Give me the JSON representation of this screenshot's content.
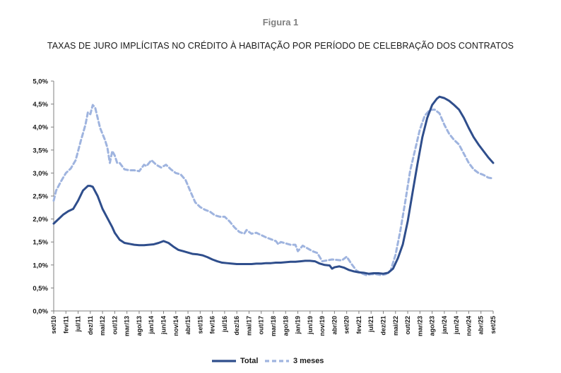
{
  "figure_label": "Figura 1",
  "colors": {
    "total": "#2f4e8c",
    "tres_meses": "#9fb4df",
    "axis": "#808080"
  },
  "chart_data": {
    "type": "line",
    "title": "TAXAS DE JURO IMPLÍCITAS NO CRÉDITO À HABITAÇÃO POR PERÍODO DE CELEBRAÇÃO DOS CONTRATOS",
    "xlabel": "",
    "ylabel": "",
    "ylim": [
      0,
      5
    ],
    "yticks": [
      "0,0%",
      "0,5%",
      "1,0%",
      "1,5%",
      "2,0%",
      "2,5%",
      "3,0%",
      "3,5%",
      "4,0%",
      "4,5%",
      "5,0%"
    ],
    "x_start": "set/10",
    "x_end": "set/25",
    "xticks": [
      {
        "label": "set/10",
        "m": 0
      },
      {
        "label": "fev/11",
        "m": 5
      },
      {
        "label": "jul/11",
        "m": 10
      },
      {
        "label": "dez/11",
        "m": 15
      },
      {
        "label": "mai/12",
        "m": 20
      },
      {
        "label": "out/12",
        "m": 25
      },
      {
        "label": "mar/13",
        "m": 30
      },
      {
        "label": "ago/13",
        "m": 35
      },
      {
        "label": "jan/14",
        "m": 40
      },
      {
        "label": "jun/14",
        "m": 45
      },
      {
        "label": "nov/14",
        "m": 50
      },
      {
        "label": "abr/15",
        "m": 55
      },
      {
        "label": "set/15",
        "m": 60
      },
      {
        "label": "fev/16",
        "m": 65
      },
      {
        "label": "jul/16",
        "m": 70
      },
      {
        "label": "dez/16",
        "m": 75
      },
      {
        "label": "mai/17",
        "m": 80
      },
      {
        "label": "out/17",
        "m": 85
      },
      {
        "label": "mar/18",
        "m": 90
      },
      {
        "label": "ago/18",
        "m": 95
      },
      {
        "label": "jan/19",
        "m": 100
      },
      {
        "label": "jun/19",
        "m": 105
      },
      {
        "label": "nov/19",
        "m": 110
      },
      {
        "label": "abr/20",
        "m": 115
      },
      {
        "label": "set/20",
        "m": 120
      },
      {
        "label": "fev/21",
        "m": 125
      },
      {
        "label": "jul/21",
        "m": 130
      },
      {
        "label": "dez/21",
        "m": 135
      },
      {
        "label": "mai/22",
        "m": 140
      },
      {
        "label": "out/22",
        "m": 145
      },
      {
        "label": "mar/23",
        "m": 150
      },
      {
        "label": "ago/23",
        "m": 155
      },
      {
        "label": "jan/24",
        "m": 160
      },
      {
        "label": "jun/24",
        "m": 165
      },
      {
        "label": "nov/24",
        "m": 170
      },
      {
        "label": "abr/25",
        "m": 175
      },
      {
        "label": "set/25",
        "m": 180
      }
    ],
    "grid": false,
    "legend_position": "bottom-center",
    "series": [
      {
        "name": "Total",
        "style": "solid",
        "points": [
          [
            "set/10",
            1.9
          ],
          [
            "nov/10",
            2.0
          ],
          [
            "jan/11",
            2.1
          ],
          [
            "mar/11",
            2.17
          ],
          [
            "mai/11",
            2.22
          ],
          [
            "jul/11",
            2.4
          ],
          [
            "set/11",
            2.62
          ],
          [
            "nov/11",
            2.72
          ],
          [
            "dez/11",
            2.72
          ],
          [
            "jan/12",
            2.7
          ],
          [
            "mar/12",
            2.5
          ],
          [
            "mai/12",
            2.22
          ],
          [
            "jul/12",
            2.02
          ],
          [
            "set/12",
            1.82
          ],
          [
            "out/12",
            1.7
          ],
          [
            "dez/12",
            1.55
          ],
          [
            "fev/13",
            1.48
          ],
          [
            "abr/13",
            1.46
          ],
          [
            "jun/13",
            1.44
          ],
          [
            "ago/13",
            1.43
          ],
          [
            "out/13",
            1.43
          ],
          [
            "dez/13",
            1.44
          ],
          [
            "fev/14",
            1.45
          ],
          [
            "abr/14",
            1.48
          ],
          [
            "jun/14",
            1.52
          ],
          [
            "ago/14",
            1.48
          ],
          [
            "out/14",
            1.4
          ],
          [
            "dez/14",
            1.33
          ],
          [
            "fev/15",
            1.3
          ],
          [
            "abr/15",
            1.27
          ],
          [
            "jun/15",
            1.24
          ],
          [
            "ago/15",
            1.23
          ],
          [
            "out/15",
            1.21
          ],
          [
            "dez/15",
            1.17
          ],
          [
            "fev/16",
            1.12
          ],
          [
            "abr/16",
            1.08
          ],
          [
            "jun/16",
            1.05
          ],
          [
            "ago/16",
            1.04
          ],
          [
            "out/16",
            1.03
          ],
          [
            "dez/16",
            1.02
          ],
          [
            "fev/17",
            1.02
          ],
          [
            "abr/17",
            1.02
          ],
          [
            "jun/17",
            1.02
          ],
          [
            "ago/17",
            1.03
          ],
          [
            "out/17",
            1.03
          ],
          [
            "dez/17",
            1.04
          ],
          [
            "fev/18",
            1.04
          ],
          [
            "abr/18",
            1.05
          ],
          [
            "jun/18",
            1.05
          ],
          [
            "ago/18",
            1.06
          ],
          [
            "out/18",
            1.07
          ],
          [
            "dez/18",
            1.07
          ],
          [
            "fev/19",
            1.08
          ],
          [
            "abr/19",
            1.09
          ],
          [
            "jun/19",
            1.09
          ],
          [
            "ago/19",
            1.08
          ],
          [
            "out/19",
            1.03
          ],
          [
            "dez/19",
            1.0
          ],
          [
            "fev/20",
            0.99
          ],
          [
            "mar/20",
            0.92
          ],
          [
            "abr/20",
            0.95
          ],
          [
            "jun/20",
            0.97
          ],
          [
            "ago/20",
            0.94
          ],
          [
            "out/20",
            0.89
          ],
          [
            "dez/20",
            0.86
          ],
          [
            "fev/21",
            0.84
          ],
          [
            "abr/21",
            0.83
          ],
          [
            "jun/21",
            0.81
          ],
          [
            "ago/21",
            0.82
          ],
          [
            "out/21",
            0.82
          ],
          [
            "dez/21",
            0.81
          ],
          [
            "fev/22",
            0.83
          ],
          [
            "abr/22",
            0.92
          ],
          [
            "jun/22",
            1.15
          ],
          [
            "ago/22",
            1.45
          ],
          [
            "out/22",
            1.95
          ],
          [
            "dez/22",
            2.58
          ],
          [
            "fev/23",
            3.2
          ],
          [
            "abr/23",
            3.78
          ],
          [
            "jun/23",
            4.2
          ],
          [
            "ago/23",
            4.48
          ],
          [
            "out/23",
            4.62
          ],
          [
            "nov/23",
            4.66
          ],
          [
            "jan/24",
            4.63
          ],
          [
            "mar/24",
            4.57
          ],
          [
            "mai/24",
            4.48
          ],
          [
            "jul/24",
            4.38
          ],
          [
            "set/24",
            4.2
          ],
          [
            "nov/24",
            3.98
          ],
          [
            "jan/25",
            3.78
          ],
          [
            "mar/25",
            3.62
          ],
          [
            "mai/25",
            3.48
          ],
          [
            "jul/25",
            3.34
          ],
          [
            "set/25",
            3.22
          ]
        ]
      },
      {
        "name": "3 meses",
        "style": "dashed",
        "points": [
          [
            "set/10",
            2.4
          ],
          [
            "out/10",
            2.62
          ],
          [
            "dez/10",
            2.82
          ],
          [
            "fev/11",
            3.0
          ],
          [
            "abr/11",
            3.1
          ],
          [
            "jun/11",
            3.28
          ],
          [
            "ago/11",
            3.68
          ],
          [
            "out/11",
            4.05
          ],
          [
            "nov/11",
            4.32
          ],
          [
            "dez/11",
            4.28
          ],
          [
            "jan/12",
            4.48
          ],
          [
            "fev/12",
            4.42
          ],
          [
            "mar/12",
            4.2
          ],
          [
            "abr/12",
            3.98
          ],
          [
            "jun/12",
            3.72
          ],
          [
            "jul/12",
            3.55
          ],
          [
            "ago/12",
            3.22
          ],
          [
            "set/12",
            3.48
          ],
          [
            "out/12",
            3.38
          ],
          [
            "nov/12",
            3.22
          ],
          [
            "dez/12",
            3.22
          ],
          [
            "fev/13",
            3.08
          ],
          [
            "abr/13",
            3.06
          ],
          [
            "jun/13",
            3.06
          ],
          [
            "ago/13",
            3.04
          ],
          [
            "out/13",
            3.18
          ],
          [
            "nov/13",
            3.15
          ],
          [
            "jan/14",
            3.28
          ],
          [
            "mar/14",
            3.18
          ],
          [
            "mai/14",
            3.12
          ],
          [
            "jul/14",
            3.18
          ],
          [
            "set/14",
            3.08
          ],
          [
            "nov/14",
            3.0
          ],
          [
            "jan/15",
            2.97
          ],
          [
            "mar/15",
            2.85
          ],
          [
            "mai/15",
            2.6
          ],
          [
            "jul/15",
            2.36
          ],
          [
            "set/15",
            2.26
          ],
          [
            "nov/15",
            2.2
          ],
          [
            "jan/16",
            2.16
          ],
          [
            "mar/16",
            2.08
          ],
          [
            "mai/16",
            2.05
          ],
          [
            "jul/16",
            2.05
          ],
          [
            "set/16",
            1.95
          ],
          [
            "nov/16",
            1.82
          ],
          [
            "jan/17",
            1.72
          ],
          [
            "mar/17",
            1.68
          ],
          [
            "abr/17",
            1.76
          ],
          [
            "jun/17",
            1.68
          ],
          [
            "ago/17",
            1.7
          ],
          [
            "out/17",
            1.65
          ],
          [
            "dez/17",
            1.6
          ],
          [
            "fev/18",
            1.56
          ],
          [
            "abr/18",
            1.52
          ],
          [
            "mai/18",
            1.45
          ],
          [
            "jun/18",
            1.5
          ],
          [
            "ago/18",
            1.47
          ],
          [
            "out/18",
            1.44
          ],
          [
            "dez/18",
            1.44
          ],
          [
            "jan/19",
            1.3
          ],
          [
            "mar/19",
            1.42
          ],
          [
            "mai/19",
            1.36
          ],
          [
            "jul/19",
            1.3
          ],
          [
            "set/19",
            1.26
          ],
          [
            "nov/19",
            1.08
          ],
          [
            "jan/20",
            1.1
          ],
          [
            "mar/20",
            1.12
          ],
          [
            "mai/20",
            1.11
          ],
          [
            "jul/20",
            1.1
          ],
          [
            "set/20",
            1.18
          ],
          [
            "nov/20",
            1.02
          ],
          [
            "jan/21",
            0.88
          ],
          [
            "mar/21",
            0.82
          ],
          [
            "mai/21",
            0.78
          ],
          [
            "jul/21",
            0.8
          ],
          [
            "set/21",
            0.8
          ],
          [
            "nov/21",
            0.78
          ],
          [
            "jan/22",
            0.8
          ],
          [
            "mar/22",
            0.88
          ],
          [
            "mai/22",
            1.22
          ],
          [
            "jul/22",
            1.75
          ],
          [
            "set/22",
            2.38
          ],
          [
            "nov/22",
            3.05
          ],
          [
            "jan/23",
            3.5
          ],
          [
            "mar/23",
            3.95
          ],
          [
            "mai/23",
            4.25
          ],
          [
            "jul/23",
            4.37
          ],
          [
            "set/23",
            4.38
          ],
          [
            "nov/23",
            4.3
          ],
          [
            "jan/24",
            4.05
          ],
          [
            "mar/24",
            3.85
          ],
          [
            "mai/24",
            3.72
          ],
          [
            "jul/24",
            3.62
          ],
          [
            "set/24",
            3.42
          ],
          [
            "nov/24",
            3.22
          ],
          [
            "jan/25",
            3.08
          ],
          [
            "mar/25",
            3.0
          ],
          [
            "mai/25",
            2.96
          ],
          [
            "jul/25",
            2.9
          ],
          [
            "set/25",
            2.88
          ]
        ]
      }
    ]
  }
}
